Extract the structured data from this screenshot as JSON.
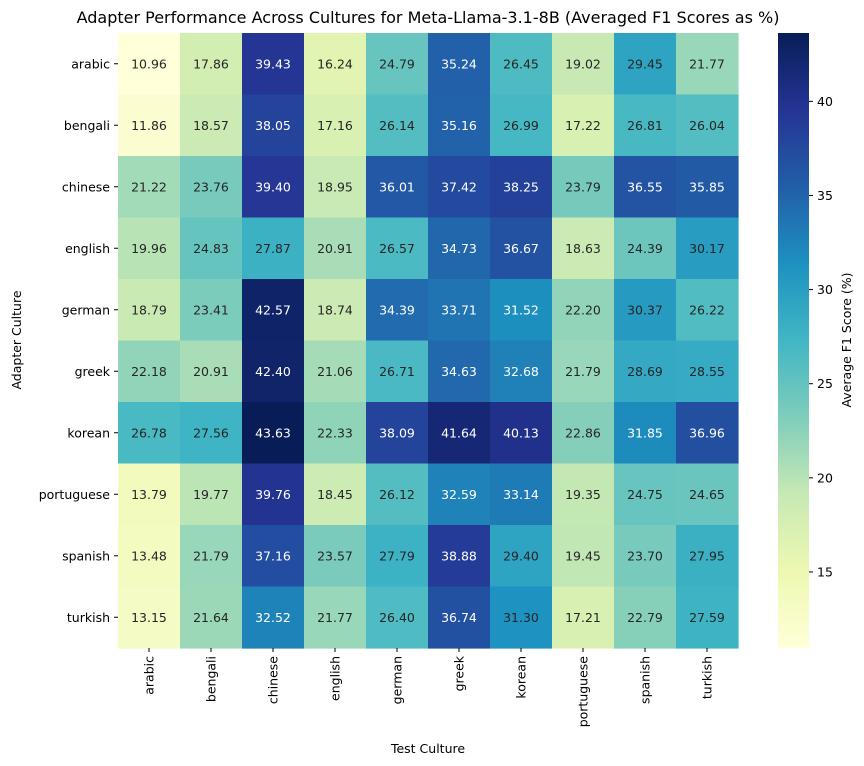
{
  "chart_data": {
    "type": "heatmap",
    "title": "Adapter Performance Across Cultures for Meta-Llama-3.1-8B (Averaged F1 Scores as %)",
    "xlabel": "Test Culture",
    "ylabel": "Adapter Culture",
    "colorbar_label": "Average F1 Score (%)",
    "colormap": "YlGnBu",
    "vmin": 10.96,
    "vmax": 43.63,
    "colorbar_ticks": [
      15,
      20,
      25,
      30,
      35,
      40
    ],
    "x_categories": [
      "arabic",
      "bengali",
      "chinese",
      "english",
      "german",
      "greek",
      "korean",
      "portuguese",
      "spanish",
      "turkish"
    ],
    "y_categories": [
      "arabic",
      "bengali",
      "chinese",
      "english",
      "german",
      "greek",
      "korean",
      "portuguese",
      "spanish",
      "turkish"
    ],
    "values": [
      [
        10.96,
        17.86,
        39.43,
        16.24,
        24.79,
        35.24,
        26.45,
        19.02,
        29.45,
        21.77
      ],
      [
        11.86,
        18.57,
        38.05,
        17.16,
        26.14,
        35.16,
        26.99,
        17.22,
        26.81,
        26.04
      ],
      [
        21.22,
        23.76,
        39.4,
        18.95,
        36.01,
        37.42,
        38.25,
        23.79,
        36.55,
        35.85
      ],
      [
        19.96,
        24.83,
        27.87,
        20.91,
        26.57,
        34.73,
        36.67,
        18.63,
        24.39,
        30.17
      ],
      [
        18.79,
        23.41,
        42.57,
        18.74,
        34.39,
        33.71,
        31.52,
        22.2,
        30.37,
        26.22
      ],
      [
        22.18,
        20.91,
        42.4,
        21.06,
        26.71,
        34.63,
        32.68,
        21.79,
        28.69,
        28.55
      ],
      [
        26.78,
        27.56,
        43.63,
        22.33,
        38.09,
        41.64,
        40.13,
        22.86,
        31.85,
        36.96
      ],
      [
        13.79,
        19.77,
        39.76,
        18.45,
        26.12,
        32.59,
        33.14,
        19.35,
        24.75,
        24.65
      ],
      [
        13.48,
        21.79,
        37.16,
        23.57,
        27.79,
        38.88,
        29.4,
        19.45,
        23.7,
        27.95
      ],
      [
        13.15,
        21.64,
        32.52,
        21.77,
        26.4,
        36.74,
        31.3,
        17.21,
        22.79,
        27.59
      ]
    ]
  }
}
